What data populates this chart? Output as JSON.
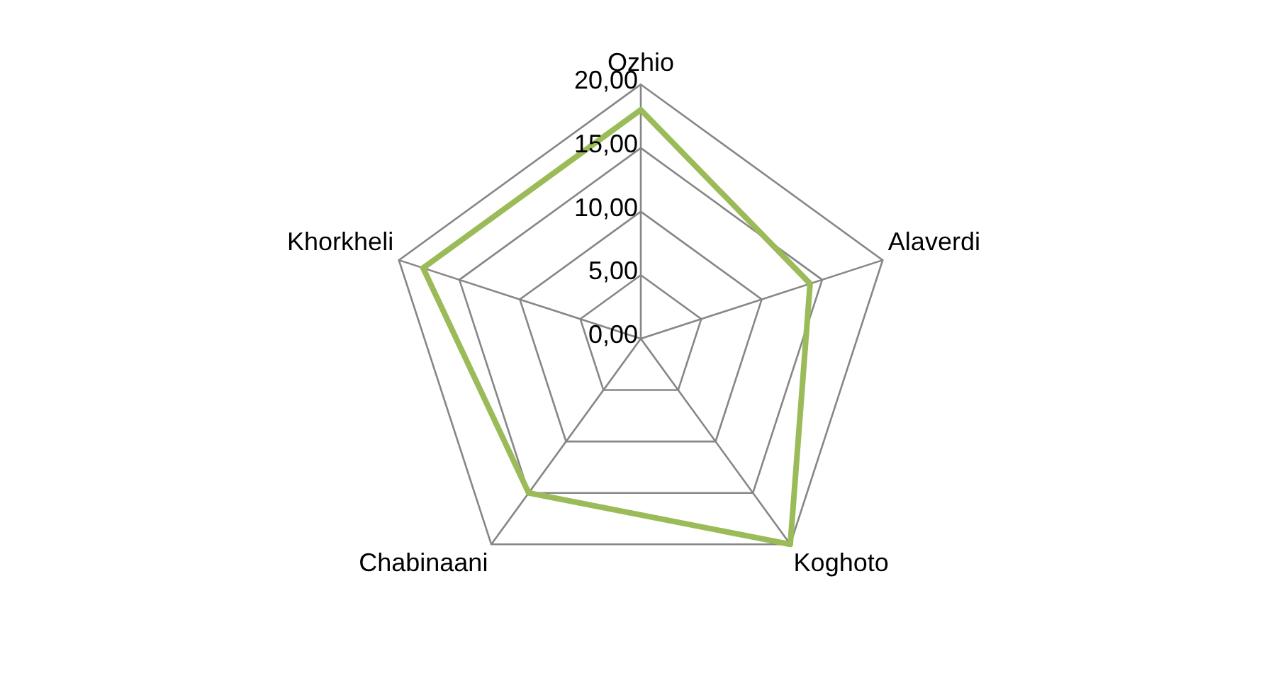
{
  "chart_data": {
    "type": "radar",
    "categories": [
      "Ozhio",
      "Alaverdi",
      "Koghoto",
      "Chabinaani",
      "Khorkheli"
    ],
    "series": [
      {
        "color": "#9bbb59",
        "values": [
          18,
          14,
          20,
          15,
          18
        ]
      }
    ],
    "ylim": [
      0,
      20
    ],
    "yticks": [
      {
        "value": 0,
        "label": "0,00"
      },
      {
        "value": 5,
        "label": "5,00"
      },
      {
        "value": 10,
        "label": "10,00"
      },
      {
        "value": 15,
        "label": "15,00"
      },
      {
        "value": 20,
        "label": "20,00"
      }
    ],
    "grid": true,
    "legend": false,
    "marker": "none"
  }
}
